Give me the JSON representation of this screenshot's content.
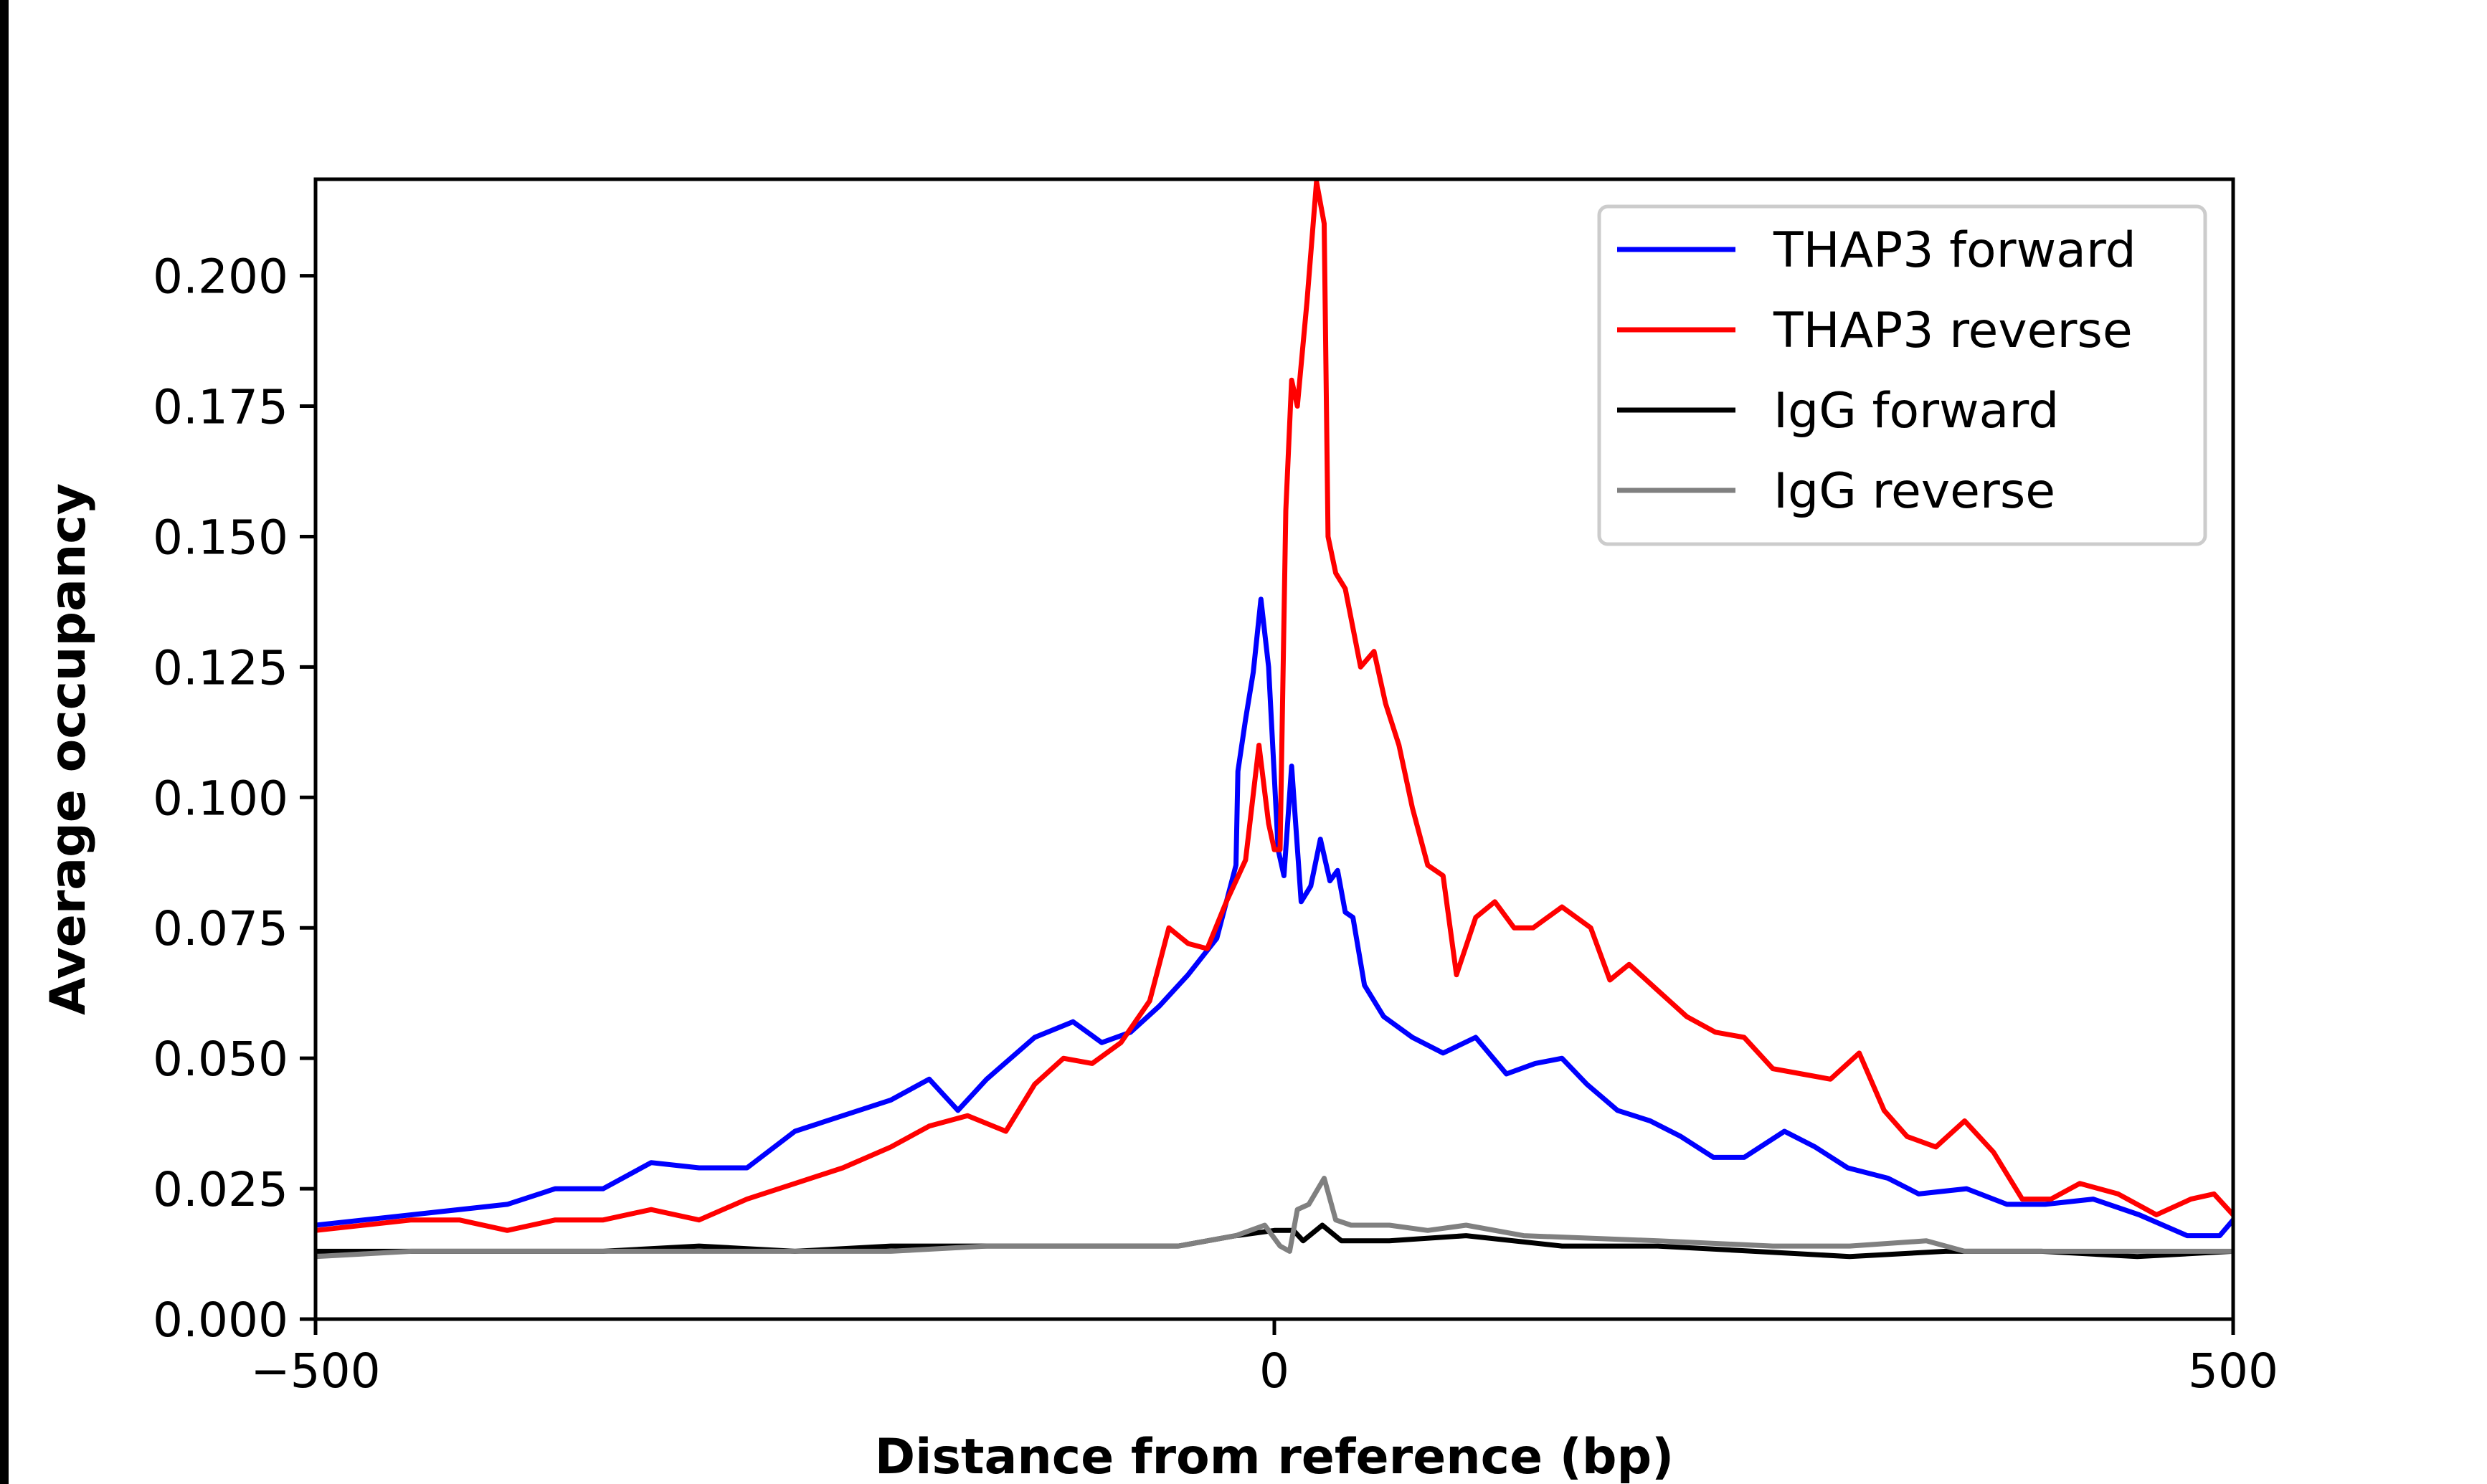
{
  "chart_data": {
    "type": "line",
    "title": "",
    "xlabel": "Distance from reference (bp)",
    "ylabel": "Average occupancy",
    "xlim": [
      -500,
      500
    ],
    "ylim": [
      0,
      0.2185
    ],
    "xticks": [
      -500,
      0,
      500
    ],
    "xtick_labels": [
      "−500",
      "0",
      "500"
    ],
    "yticks": [
      0,
      0.025,
      0.05,
      0.075,
      0.1,
      0.125,
      0.15,
      0.175,
      0.2
    ],
    "ytick_labels": [
      "0.000",
      "0.025",
      "0.050",
      "0.075",
      "0.100",
      "0.125",
      "0.150",
      "0.175",
      "0.200"
    ],
    "grid": false,
    "legend_position": "top-right",
    "series": [
      {
        "name": "THAP3 forward",
        "color": "#0000ff",
        "x": [
          -500,
          -450,
          -400,
          -375,
          -350,
          -325,
          -300,
          -275,
          -250,
          -225,
          -200,
          -180,
          -165,
          -150,
          -125,
          -105,
          -90,
          -75,
          -60,
          -45,
          -30,
          -20,
          -19,
          -15,
          -11,
          -7,
          -3,
          2,
          5,
          9,
          14,
          19,
          24,
          29,
          33,
          37,
          41,
          47,
          57,
          72,
          88,
          105,
          121,
          136,
          150,
          163,
          179,
          196,
          212,
          229,
          245,
          266,
          282,
          299,
          320,
          336,
          361,
          382,
          402,
          427,
          451,
          476,
          493,
          500
        ],
        "y": [
          0.018,
          0.02,
          0.022,
          0.025,
          0.025,
          0.03,
          0.029,
          0.029,
          0.036,
          0.039,
          0.042,
          0.046,
          0.04,
          0.046,
          0.054,
          0.057,
          0.053,
          0.055,
          0.06,
          0.066,
          0.073,
          0.087,
          0.105,
          0.115,
          0.124,
          0.138,
          0.125,
          0.09,
          0.085,
          0.106,
          0.08,
          0.083,
          0.092,
          0.084,
          0.086,
          0.078,
          0.077,
          0.064,
          0.058,
          0.054,
          0.051,
          0.054,
          0.047,
          0.049,
          0.05,
          0.045,
          0.04,
          0.038,
          0.035,
          0.031,
          0.031,
          0.036,
          0.033,
          0.029,
          0.027,
          0.024,
          0.025,
          0.022,
          0.022,
          0.023,
          0.02,
          0.016,
          0.016,
          0.019
        ]
      },
      {
        "name": "THAP3 reverse",
        "color": "#ff0000",
        "x": [
          -500,
          -450,
          -425,
          -400,
          -375,
          -350,
          -325,
          -300,
          -275,
          -250,
          -225,
          -200,
          -180,
          -160,
          -140,
          -125,
          -110,
          -95,
          -80,
          -65,
          -55,
          -45,
          -35,
          -25,
          -15,
          -8,
          -3,
          0,
          3,
          6,
          9,
          12,
          17,
          22,
          26,
          28,
          32,
          37,
          45,
          52,
          58,
          65,
          72,
          80,
          88,
          95,
          105,
          115,
          125,
          135,
          150,
          165,
          175,
          185,
          200,
          215,
          230,
          245,
          260,
          275,
          290,
          305,
          318,
          330,
          345,
          360,
          375,
          390,
          405,
          420,
          440,
          460,
          478,
          490,
          500
        ],
        "y": [
          0.017,
          0.019,
          0.019,
          0.017,
          0.019,
          0.019,
          0.021,
          0.019,
          0.023,
          0.026,
          0.029,
          0.033,
          0.037,
          0.039,
          0.036,
          0.045,
          0.05,
          0.049,
          0.053,
          0.061,
          0.075,
          0.072,
          0.071,
          0.08,
          0.088,
          0.11,
          0.095,
          0.09,
          0.09,
          0.155,
          0.18,
          0.175,
          0.195,
          0.218,
          0.21,
          0.15,
          0.143,
          0.14,
          0.125,
          0.128,
          0.118,
          0.11,
          0.098,
          0.087,
          0.085,
          0.066,
          0.077,
          0.08,
          0.075,
          0.075,
          0.079,
          0.075,
          0.065,
          0.068,
          0.063,
          0.058,
          0.055,
          0.054,
          0.048,
          0.047,
          0.046,
          0.051,
          0.04,
          0.035,
          0.033,
          0.038,
          0.032,
          0.023,
          0.023,
          0.026,
          0.024,
          0.02,
          0.023,
          0.024,
          0.02
        ]
      },
      {
        "name": "IgG forward",
        "color": "#000000",
        "x": [
          -500,
          -450,
          -400,
          -350,
          -300,
          -250,
          -200,
          -150,
          -100,
          -50,
          -20,
          0,
          10,
          15,
          25,
          35,
          60,
          100,
          150,
          200,
          250,
          300,
          350,
          400,
          450,
          500
        ],
        "y": [
          0.013,
          0.013,
          0.013,
          0.013,
          0.014,
          0.013,
          0.014,
          0.014,
          0.014,
          0.014,
          0.016,
          0.017,
          0.017,
          0.015,
          0.018,
          0.015,
          0.015,
          0.016,
          0.014,
          0.014,
          0.013,
          0.012,
          0.013,
          0.013,
          0.012,
          0.013
        ]
      },
      {
        "name": "IgG reverse",
        "color": "#808080",
        "x": [
          -500,
          -450,
          -400,
          -350,
          -300,
          -250,
          -200,
          -150,
          -100,
          -50,
          -20,
          -5,
          3,
          8,
          12,
          18,
          26,
          32,
          40,
          60,
          80,
          100,
          130,
          200,
          260,
          300,
          340,
          360,
          400,
          450,
          500
        ],
        "y": [
          0.012,
          0.013,
          0.013,
          0.013,
          0.013,
          0.013,
          0.013,
          0.014,
          0.014,
          0.014,
          0.016,
          0.018,
          0.014,
          0.013,
          0.021,
          0.022,
          0.027,
          0.019,
          0.018,
          0.018,
          0.017,
          0.018,
          0.016,
          0.015,
          0.014,
          0.014,
          0.015,
          0.013,
          0.013,
          0.013,
          0.013
        ]
      }
    ]
  }
}
